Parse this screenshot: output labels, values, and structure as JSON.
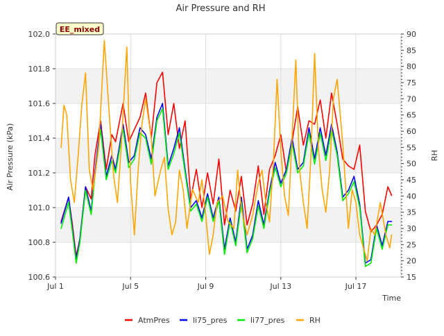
{
  "chart_data": {
    "type": "line",
    "title": "Air Pressure and RH",
    "xlabel": "Time",
    "ylabel": "Air Pressure (kPa)",
    "y2label": "RH",
    "badge": "EE_mixed",
    "xlim": [
      0.0,
      18.4
    ],
    "ylim": [
      100.6,
      102.0
    ],
    "y2lim": [
      15,
      90
    ],
    "xticks": [
      {
        "v": 0.0,
        "label": "Jul 1"
      },
      {
        "v": 4.0,
        "label": "Jul 5"
      },
      {
        "v": 8.0,
        "label": "Jul 9"
      },
      {
        "v": 12.0,
        "label": "Jul 13"
      },
      {
        "v": 16.0,
        "label": "Jul 17"
      }
    ],
    "yticks": [
      "100.6",
      "100.8",
      "101.0",
      "101.2",
      "101.4",
      "101.6",
      "101.8",
      "102.0"
    ],
    "y2ticks": [
      "15",
      "20",
      "25",
      "30",
      "35",
      "40",
      "45",
      "50",
      "55",
      "60",
      "65",
      "70",
      "75",
      "80",
      "85",
      "90"
    ],
    "legend_position": "bottom-center",
    "series": [
      {
        "name": "AtmPres",
        "color": "#ff0000",
        "axis": "left",
        "x": [
          0.3,
          0.7,
          0.9,
          1.1,
          1.3,
          1.6,
          1.9,
          2.1,
          2.4,
          2.7,
          3.0,
          3.2,
          3.6,
          3.9,
          4.2,
          4.5,
          4.8,
          5.1,
          5.4,
          5.7,
          6.0,
          6.3,
          6.6,
          6.9,
          7.2,
          7.5,
          7.8,
          8.1,
          8.4,
          8.7,
          9.0,
          9.3,
          9.6,
          9.9,
          10.2,
          10.5,
          10.8,
          11.1,
          11.4,
          11.7,
          12.0,
          12.3,
          12.6,
          12.9,
          13.2,
          13.5,
          13.8,
          14.1,
          14.4,
          14.7,
          15.0,
          15.3,
          15.6,
          15.9,
          16.2,
          16.5,
          16.8,
          17.1,
          17.4,
          17.7,
          17.9
        ],
        "y": [
          100.92,
          101.06,
          100.9,
          100.72,
          100.82,
          101.12,
          101.05,
          101.3,
          101.5,
          101.22,
          101.42,
          101.38,
          101.6,
          101.38,
          101.45,
          101.52,
          101.66,
          101.4,
          101.72,
          101.78,
          101.42,
          101.6,
          101.34,
          101.5,
          101.05,
          101.22,
          101.0,
          101.2,
          101.02,
          101.28,
          100.9,
          101.1,
          100.98,
          101.18,
          100.9,
          101.02,
          101.24,
          100.96,
          101.22,
          101.3,
          101.42,
          101.2,
          101.38,
          101.58,
          101.36,
          101.5,
          101.48,
          101.62,
          101.4,
          101.66,
          101.48,
          101.28,
          101.24,
          101.22,
          101.36,
          100.98,
          100.86,
          100.9,
          100.96,
          101.12,
          101.07
        ]
      },
      {
        "name": "li75_pres",
        "color": "#0000ff",
        "axis": "left",
        "x": [
          0.3,
          0.7,
          0.9,
          1.1,
          1.3,
          1.6,
          1.9,
          2.1,
          2.4,
          2.7,
          3.0,
          3.2,
          3.6,
          3.9,
          4.2,
          4.5,
          4.8,
          5.1,
          5.4,
          5.7,
          6.0,
          6.3,
          6.6,
          6.9,
          7.2,
          7.5,
          7.8,
          8.1,
          8.4,
          8.7,
          9.0,
          9.3,
          9.6,
          9.9,
          10.2,
          10.5,
          10.8,
          11.1,
          11.4,
          11.7,
          12.0,
          12.3,
          12.6,
          12.9,
          13.2,
          13.5,
          13.8,
          14.1,
          14.4,
          14.7,
          15.0,
          15.3,
          15.6,
          15.9,
          16.2,
          16.5,
          16.8,
          17.1,
          17.4,
          17.7,
          17.9
        ],
        "y": [
          100.91,
          101.06,
          100.88,
          100.7,
          100.82,
          101.12,
          100.98,
          101.2,
          101.48,
          101.18,
          101.3,
          101.22,
          101.48,
          101.26,
          101.3,
          101.46,
          101.42,
          101.28,
          101.52,
          101.6,
          101.24,
          101.34,
          101.46,
          101.22,
          101.0,
          101.04,
          100.94,
          101.08,
          100.94,
          101.06,
          100.76,
          100.94,
          100.8,
          101.06,
          100.76,
          100.84,
          101.04,
          100.9,
          101.1,
          101.26,
          101.14,
          101.22,
          101.4,
          101.22,
          101.26,
          101.46,
          101.28,
          101.46,
          101.3,
          101.48,
          101.32,
          101.06,
          101.1,
          101.18,
          101.02,
          100.68,
          100.7,
          100.9,
          100.78,
          100.92,
          100.92
        ]
      },
      {
        "name": "li77_pres",
        "color": "#00ee00",
        "axis": "left",
        "x": [
          0.3,
          0.7,
          0.9,
          1.1,
          1.3,
          1.6,
          1.9,
          2.1,
          2.4,
          2.7,
          3.0,
          3.2,
          3.6,
          3.9,
          4.2,
          4.5,
          4.8,
          5.1,
          5.4,
          5.7,
          6.0,
          6.3,
          6.6,
          6.9,
          7.2,
          7.5,
          7.8,
          8.1,
          8.4,
          8.7,
          9.0,
          9.3,
          9.6,
          9.9,
          10.2,
          10.5,
          10.8,
          11.1,
          11.4,
          11.7,
          12.0,
          12.3,
          12.6,
          12.9,
          13.2,
          13.5,
          13.8,
          14.1,
          14.4,
          14.7,
          15.0,
          15.3,
          15.6,
          15.9,
          16.2,
          16.5,
          16.8,
          17.1,
          17.4,
          17.7,
          17.9
        ],
        "y": [
          100.88,
          101.03,
          100.86,
          100.68,
          100.8,
          101.1,
          100.96,
          101.18,
          101.45,
          101.16,
          101.27,
          101.2,
          101.45,
          101.23,
          101.28,
          101.43,
          101.4,
          101.25,
          101.5,
          101.57,
          101.22,
          101.31,
          101.43,
          101.2,
          100.98,
          101.02,
          100.92,
          101.06,
          100.92,
          101.04,
          100.73,
          100.92,
          100.78,
          101.03,
          100.74,
          100.82,
          101.01,
          100.88,
          101.08,
          101.23,
          101.12,
          101.2,
          101.37,
          101.2,
          101.24,
          101.43,
          101.25,
          101.43,
          101.27,
          101.45,
          101.3,
          101.04,
          101.08,
          101.15,
          101.0,
          100.66,
          100.68,
          100.88,
          100.76,
          100.9,
          100.9
        ]
      },
      {
        "name": "RH",
        "color": "#ffa500",
        "axis": "right",
        "x": [
          0.3,
          0.45,
          0.6,
          0.8,
          1.0,
          1.2,
          1.4,
          1.6,
          1.8,
          2.0,
          2.3,
          2.6,
          2.9,
          3.1,
          3.3,
          3.5,
          3.8,
          4.0,
          4.2,
          4.4,
          4.6,
          4.8,
          5.1,
          5.3,
          5.6,
          5.8,
          6.0,
          6.2,
          6.4,
          6.6,
          6.8,
          7.0,
          7.3,
          7.6,
          7.8,
          8.0,
          8.2,
          8.4,
          8.6,
          8.9,
          9.2,
          9.5,
          9.7,
          9.9,
          10.2,
          10.5,
          10.8,
          11.0,
          11.2,
          11.4,
          11.6,
          11.8,
          12.0,
          12.2,
          12.4,
          12.6,
          12.8,
          13.0,
          13.2,
          13.4,
          13.6,
          13.8,
          14.0,
          14.2,
          14.4,
          14.6,
          14.8,
          15.0,
          15.3,
          15.6,
          15.8,
          16.0,
          16.2,
          16.4,
          16.6,
          16.8,
          17.0,
          17.3,
          17.6,
          17.8,
          17.9
        ],
        "y": [
          55,
          68,
          65,
          45,
          38,
          52,
          68,
          78,
          48,
          42,
          55,
          88,
          62,
          46,
          38,
          55,
          86,
          44,
          28,
          48,
          62,
          70,
          58,
          40,
          48,
          52,
          36,
          28,
          32,
          48,
          42,
          30,
          42,
          38,
          45,
          34,
          22,
          28,
          38,
          40,
          32,
          30,
          48,
          36,
          28,
          34,
          44,
          48,
          38,
          32,
          50,
          76,
          54,
          40,
          34,
          58,
          82,
          48,
          38,
          30,
          52,
          84,
          55,
          42,
          35,
          48,
          70,
          76,
          56,
          30,
          42,
          38,
          28,
          24,
          20,
          30,
          28,
          38,
          28,
          24,
          28
        ]
      }
    ]
  }
}
